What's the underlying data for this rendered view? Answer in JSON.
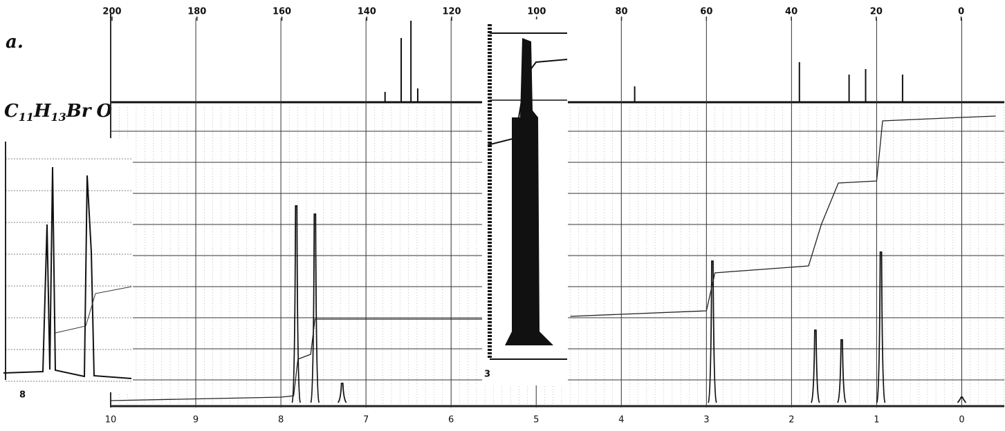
{
  "chart_data": {
    "type": "nmr",
    "label": "a.",
    "formula": [
      "C",
      "11",
      "H",
      "13",
      "Br",
      "O"
    ],
    "insets": [
      "8",
      "3"
    ],
    "carbon": {
      "x": [
        135.7,
        131.9,
        129.6,
        128.0,
        76.9,
        38.1,
        26.4,
        22.5,
        13.8
      ],
      "values": [
        15,
        93,
        118,
        20,
        23,
        58,
        40,
        48,
        40
      ],
      "xlim": [
        200,
        -10
      ],
      "xticks": [
        200,
        180,
        160,
        140,
        120,
        100,
        80,
        60,
        40,
        20,
        0
      ],
      "ylim": [
        0,
        128
      ]
    },
    "proton": {
      "x": [
        7.82,
        7.6,
        7.28,
        2.93,
        1.72,
        1.41,
        0.95,
        0
      ],
      "values": [
        285,
        273,
        28,
        205,
        105,
        91,
        218,
        8
      ],
      "xlim": [
        10,
        -0.5
      ],
      "xticks": [
        10,
        9,
        8,
        7,
        6,
        5,
        4,
        3,
        2,
        1,
        0
      ],
      "ylim": [
        0,
        433
      ],
      "integral": {
        "x": [
          10,
          8,
          7.85,
          7.8,
          7.65,
          7.6,
          5.6,
          5.0,
          4.6,
          3.0,
          2.9,
          1.8,
          1.65,
          1.45,
          1.0,
          0.93,
          0,
          -0.4
        ],
        "values": [
          3,
          8,
          10,
          63,
          70,
          121,
          121,
          null,
          125,
          133,
          188,
          198,
          258,
          318,
          321,
          408,
          413,
          415
        ]
      }
    }
  }
}
